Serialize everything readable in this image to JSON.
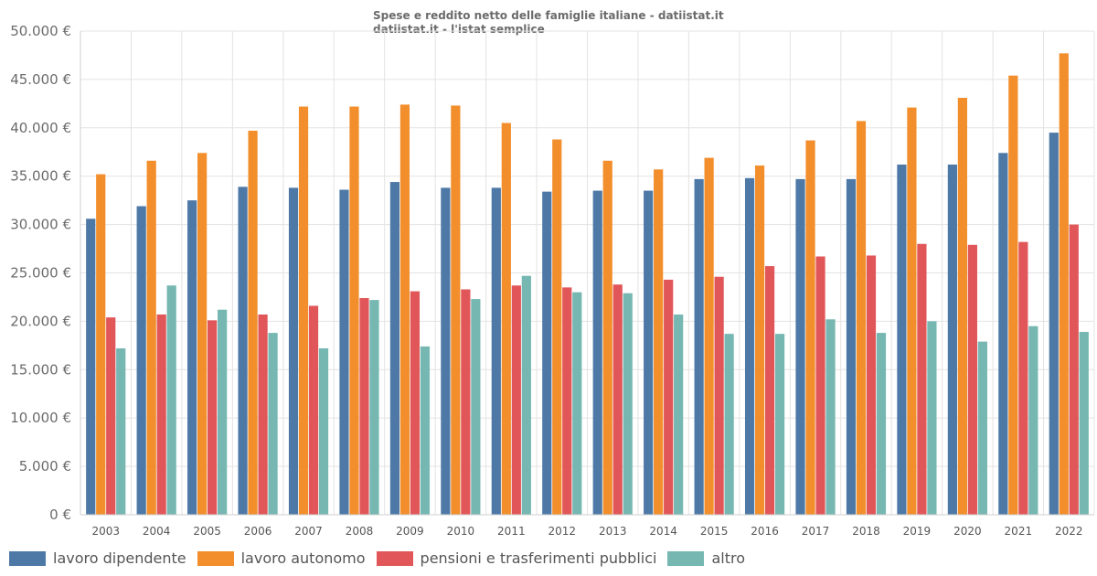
{
  "chart_data": {
    "type": "bar",
    "title": "Spese e reddito netto delle famiglie italiane - datiistat.it",
    "subtitle": "datiistat.it - l'istat semplice",
    "xlabel": "",
    "ylabel": "",
    "ylim": [
      0,
      50000
    ],
    "yticks": [
      0,
      5000,
      10000,
      15000,
      20000,
      25000,
      30000,
      35000,
      40000,
      45000,
      50000
    ],
    "ytick_labels": [
      "0 €",
      "5.000 €",
      "10.000 €",
      "15.000 €",
      "20.000 €",
      "25.000 €",
      "30.000 €",
      "35.000 €",
      "40.000 €",
      "45.000 €",
      "50.000 €"
    ],
    "grid": true,
    "legend_position": "bottom-left",
    "categories": [
      "2003",
      "2004",
      "2005",
      "2006",
      "2007",
      "2008",
      "2009",
      "2010",
      "2011",
      "2012",
      "2013",
      "2014",
      "2015",
      "2016",
      "2017",
      "2018",
      "2019",
      "2020",
      "2021",
      "2022"
    ],
    "series": [
      {
        "name": "lavoro dipendente",
        "color": "#4e79a7",
        "values": [
          30600,
          31900,
          32500,
          33900,
          33800,
          33600,
          34400,
          33800,
          33800,
          33400,
          33500,
          33500,
          34700,
          34800,
          34700,
          34700,
          36200,
          36200,
          37400,
          39500
        ]
      },
      {
        "name": "lavoro autonomo",
        "color": "#f28e2b",
        "values": [
          35200,
          36600,
          37400,
          39700,
          42200,
          42200,
          42400,
          42300,
          40500,
          38800,
          36600,
          35700,
          36900,
          36100,
          38700,
          40700,
          42100,
          43100,
          45400,
          47700
        ]
      },
      {
        "name": "pensioni e trasferimenti pubblici",
        "color": "#e15759",
        "values": [
          20400,
          20700,
          20100,
          20700,
          21600,
          22400,
          23100,
          23300,
          23700,
          23500,
          23800,
          24300,
          24600,
          25700,
          26700,
          26800,
          28000,
          27900,
          28200,
          30000
        ]
      },
      {
        "name": "altro",
        "color": "#76b7b2",
        "values": [
          17200,
          23700,
          21200,
          18800,
          17200,
          22200,
          17400,
          22300,
          24700,
          23000,
          22900,
          20700,
          18700,
          18700,
          20200,
          18800,
          20000,
          17900,
          19500,
          18900
        ]
      }
    ]
  }
}
